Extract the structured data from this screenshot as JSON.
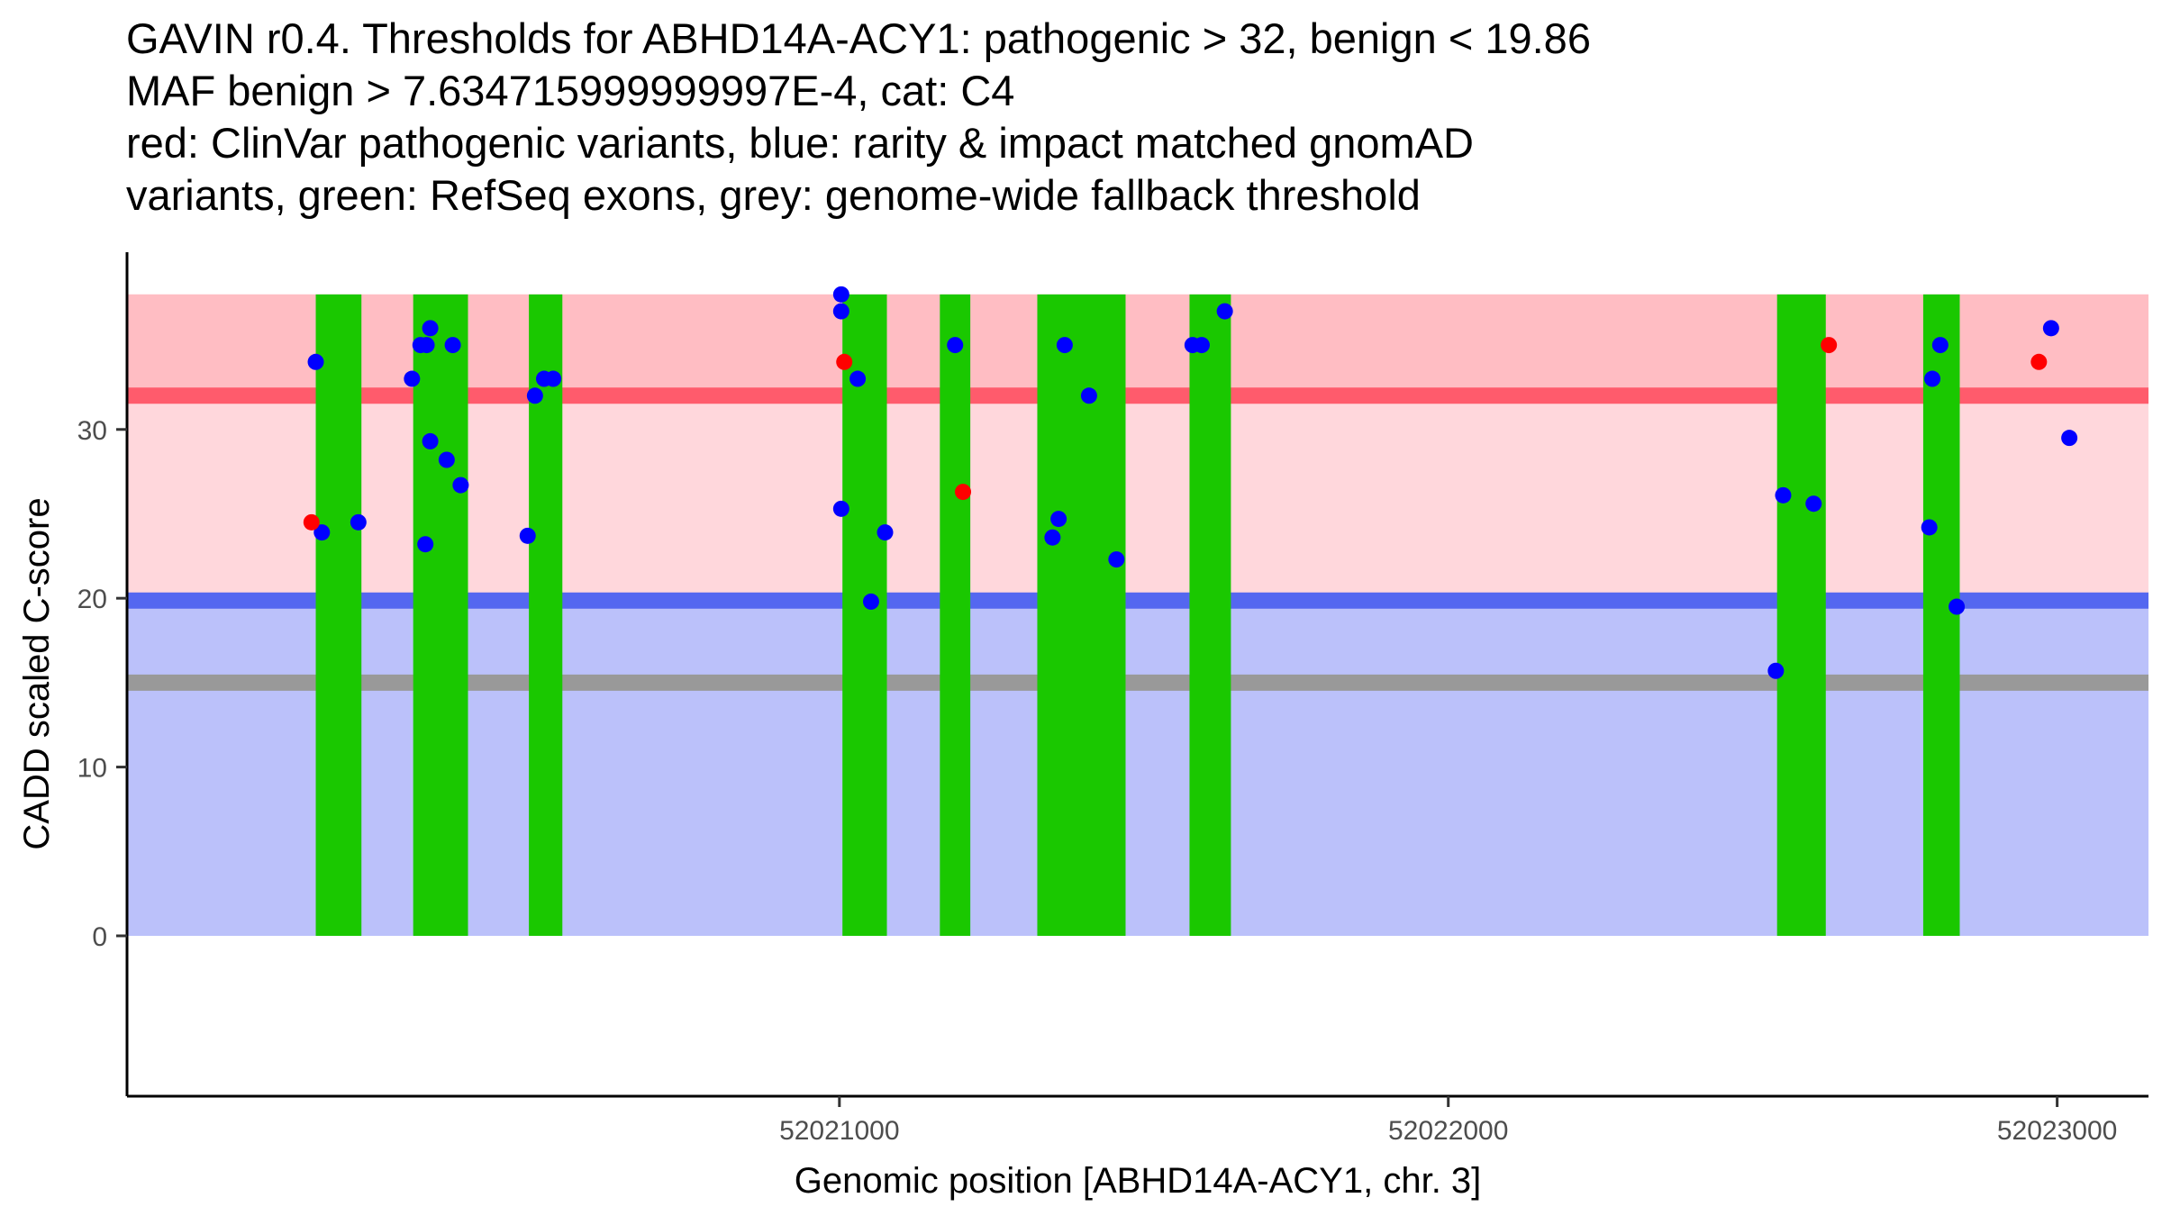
{
  "chart_data": {
    "type": "scatter",
    "title_lines": [
      "GAVIN r0.4. Thresholds for ABHD14A-ACY1: pathogenic > 32, benign < 19.86",
      "MAF benign > 7.634715999999997E-4, cat: C4",
      "red: ClinVar pathogenic variants, blue: rarity & impact matched gnomAD",
      "variants, green: RefSeq exons, grey: genome-wide fallback threshold"
    ],
    "xlabel": "Genomic position [ABHD14A-ACY1, chr. 3]",
    "ylabel": "CADD scaled C-score",
    "xlim": [
      52019830,
      52023150
    ],
    "ylim": [
      -9.5,
      40.5
    ],
    "x_ticks": [
      52021000,
      52022000,
      52023000
    ],
    "y_ticks": [
      0,
      10,
      20,
      30
    ],
    "x_tick_labels": [
      "52021000",
      "52022000",
      "52023000"
    ],
    "y_tick_labels": [
      "0",
      "10",
      "20",
      "30"
    ],
    "regions": {
      "benign_band": {
        "y": [
          0,
          19.86
        ],
        "color": "#BBC1FA"
      },
      "pathogenic_band": {
        "y": [
          19.86,
          38
        ],
        "color": "#FFD7DC"
      },
      "pathogenic_strong_band": {
        "y": [
          32,
          38
        ],
        "color": "#FFBDC3"
      }
    },
    "threshold_lines": [
      {
        "name": "pathogenic",
        "y": 32,
        "color": "#FF5B6C"
      },
      {
        "name": "benign",
        "y": 19.86,
        "color": "#5467F0"
      },
      {
        "name": "genome-wide fallback",
        "y": 15,
        "color": "#999999"
      }
    ],
    "exons": [
      {
        "start": 52020140,
        "end": 52020215
      },
      {
        "start": 52020300,
        "end": 52020390
      },
      {
        "start": 52020490,
        "end": 52020545
      },
      {
        "start": 52021005,
        "end": 52021078
      },
      {
        "start": 52021165,
        "end": 52021215
      },
      {
        "start": 52021325,
        "end": 52021470
      },
      {
        "start": 52021575,
        "end": 52021643
      },
      {
        "start": 52022540,
        "end": 52022620
      },
      {
        "start": 52022780,
        "end": 52022840
      }
    ],
    "exon_color": "#1AC800",
    "exon_y_range": [
      0,
      38
    ],
    "series": [
      {
        "name": "ClinVar pathogenic",
        "color": "#FF0000",
        "points": [
          [
            52020133,
            24.5
          ],
          [
            52021008,
            34
          ],
          [
            52021203,
            26.3
          ],
          [
            52022625,
            35
          ],
          [
            52022970,
            34
          ]
        ]
      },
      {
        "name": "gnomAD matched",
        "color": "#0000FF",
        "points": [
          [
            52020140,
            34
          ],
          [
            52020150,
            23.9
          ],
          [
            52020210,
            24.5
          ],
          [
            52020298,
            33
          ],
          [
            52020312,
            35
          ],
          [
            52020322,
            35
          ],
          [
            52020328,
            36
          ],
          [
            52020328,
            29.3
          ],
          [
            52020320,
            23.2
          ],
          [
            52020355,
            28.2
          ],
          [
            52020365,
            35
          ],
          [
            52020378,
            26.7
          ],
          [
            52020488,
            23.7
          ],
          [
            52020500,
            32
          ],
          [
            52020515,
            33
          ],
          [
            52020530,
            33
          ],
          [
            52021003,
            38
          ],
          [
            52021003,
            37
          ],
          [
            52021003,
            25.3
          ],
          [
            52021030,
            33
          ],
          [
            52021052,
            19.8
          ],
          [
            52021075,
            23.9
          ],
          [
            52021190,
            35
          ],
          [
            52021350,
            23.6
          ],
          [
            52021360,
            24.7
          ],
          [
            52021370,
            35
          ],
          [
            52021410,
            32
          ],
          [
            52021455,
            22.3
          ],
          [
            52021580,
            35
          ],
          [
            52021595,
            35
          ],
          [
            52021633,
            37
          ],
          [
            52022538,
            15.7
          ],
          [
            52022550,
            26.1
          ],
          [
            52022600,
            25.6
          ],
          [
            52022790,
            24.2
          ],
          [
            52022795,
            33
          ],
          [
            52022808,
            35
          ],
          [
            52022835,
            19.5
          ],
          [
            52022990,
            36
          ],
          [
            52023020,
            29.5
          ]
        ]
      }
    ]
  }
}
